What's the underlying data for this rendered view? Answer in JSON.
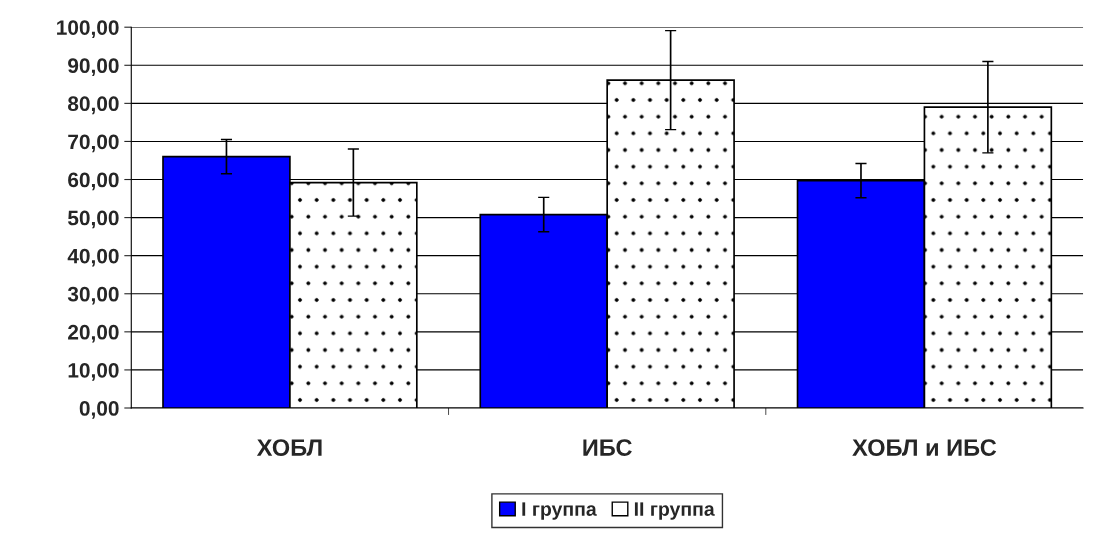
{
  "chart_data": {
    "type": "bar",
    "categories": [
      "ХОБЛ",
      "ИБС",
      "ХОБЛ и ИБС"
    ],
    "series": [
      {
        "name": "I группа",
        "color": "#0000ff",
        "values": [
          66.0,
          50.8,
          59.7
        ],
        "errors": [
          4.5,
          4.5,
          4.5
        ]
      },
      {
        "name": "II группа",
        "color": "#ffffff",
        "values": [
          59.2,
          86.1,
          79.0
        ],
        "errors": [
          8.8,
          13,
          12
        ]
      }
    ],
    "ylim": [
      0,
      100
    ],
    "yticks": [
      {
        "value": 0,
        "label": "0,00"
      },
      {
        "value": 10,
        "label": "10,00"
      },
      {
        "value": 20,
        "label": "20,00"
      },
      {
        "value": 30,
        "label": "30,00"
      },
      {
        "value": 40,
        "label": "40,00"
      },
      {
        "value": 50,
        "label": "50,00"
      },
      {
        "value": 60,
        "label": "60,00"
      },
      {
        "value": 70,
        "label": "70,00"
      },
      {
        "value": 80,
        "label": "80,00"
      },
      {
        "value": 90,
        "label": "90,00"
      },
      {
        "value": 100,
        "label": "100,00"
      }
    ],
    "grid": "y",
    "legend": "bottom"
  }
}
